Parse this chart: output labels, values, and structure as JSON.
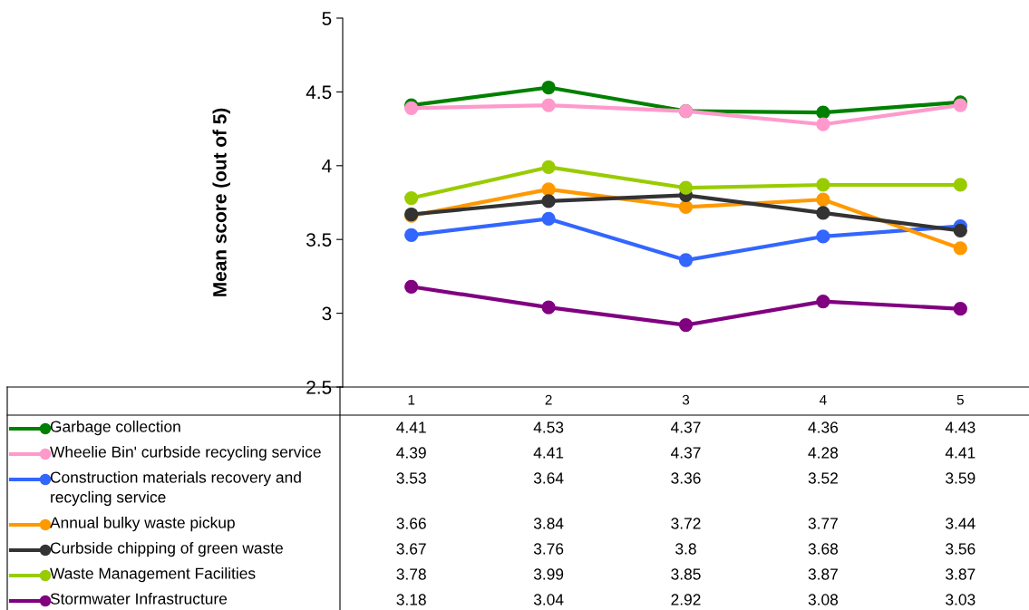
{
  "chart_data": {
    "type": "line",
    "ylabel": "Mean score (out of 5)",
    "categories": [
      "1",
      "2",
      "3",
      "4",
      "5"
    ],
    "series": [
      {
        "name": "Garbage collection",
        "color": "#008000",
        "values": [
          4.41,
          4.53,
          4.37,
          4.36,
          4.43
        ]
      },
      {
        "name": "Wheelie Bin' curbside recycling service",
        "color": "#ff99cc",
        "values": [
          4.39,
          4.41,
          4.37,
          4.28,
          4.41
        ]
      },
      {
        "name": "Construction materials recovery and recycling service",
        "color": "#3366ff",
        "values": [
          3.53,
          3.64,
          3.36,
          3.52,
          3.59
        ]
      },
      {
        "name": "Annual bulky waste pickup",
        "color": "#ff9900",
        "values": [
          3.66,
          3.84,
          3.72,
          3.77,
          3.44
        ]
      },
      {
        "name": "Curbside chipping of green waste",
        "color": "#333333",
        "values": [
          3.67,
          3.76,
          3.8,
          3.68,
          3.56
        ]
      },
      {
        "name": "Waste Management Facilities",
        "color": "#99cc00",
        "values": [
          3.78,
          3.99,
          3.85,
          3.87,
          3.87
        ]
      },
      {
        "name": "Stormwater Infrastructure",
        "color": "#800080",
        "values": [
          3.18,
          3.04,
          2.92,
          3.08,
          3.03
        ]
      }
    ],
    "ylim": [
      2.5,
      5
    ],
    "yticks": [
      2.5,
      3,
      3.5,
      4,
      4.5,
      5
    ],
    "data_labels": true,
    "legend": "bottom",
    "marker": "circle",
    "line_style": "solid",
    "grid": false
  }
}
